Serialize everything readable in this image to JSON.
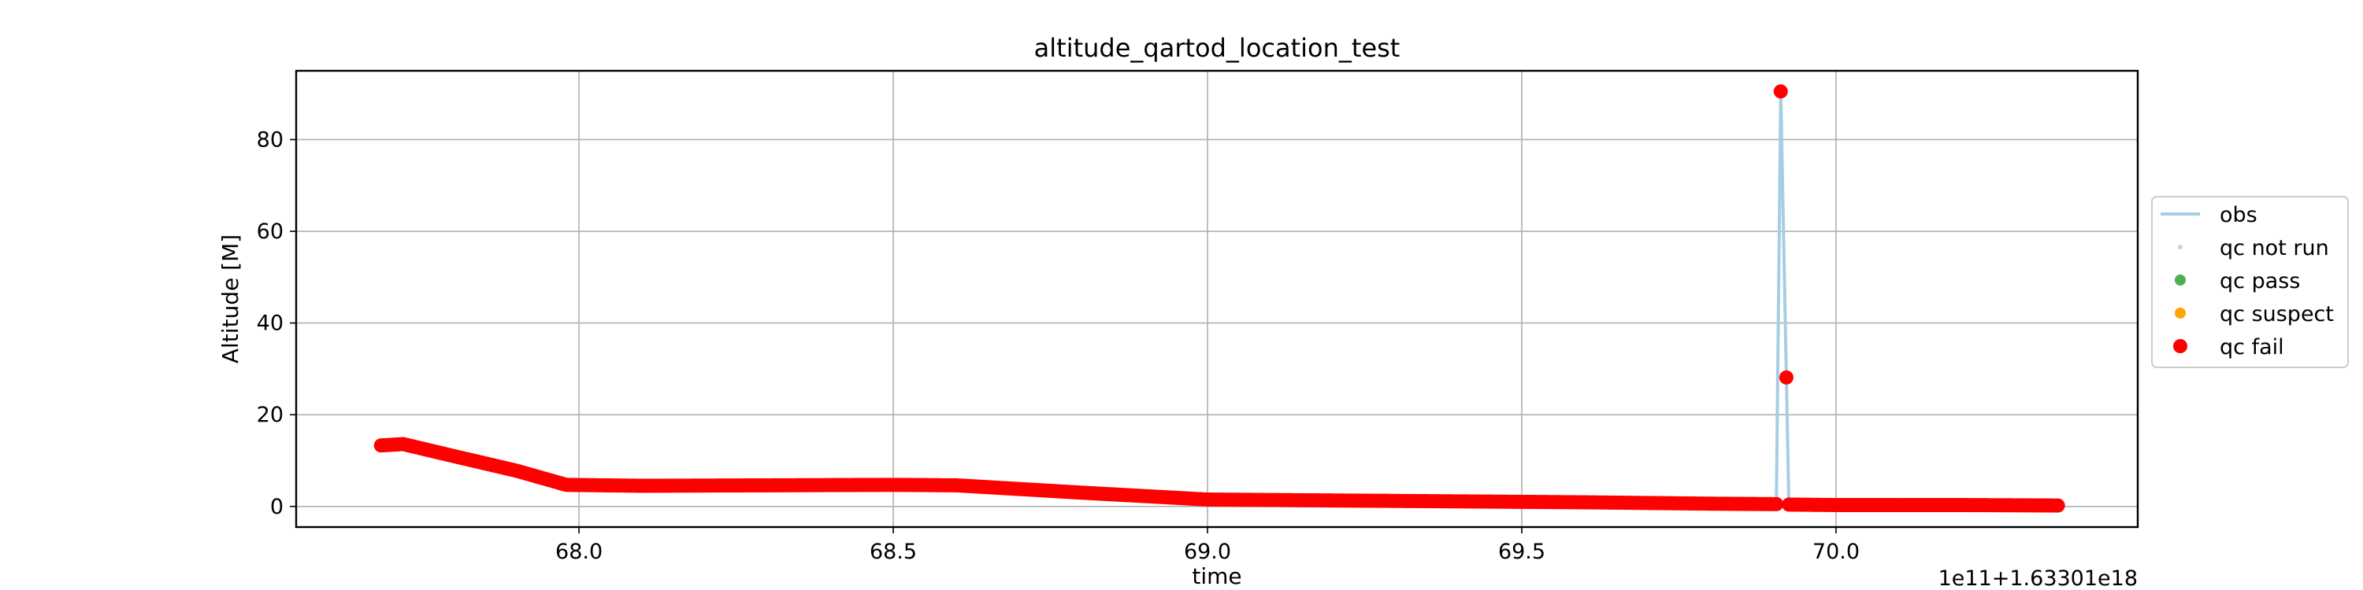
{
  "chart_data": {
    "type": "scatter",
    "title": "altitude_qartod_location_test",
    "xlabel": "time",
    "ylabel": "Altitude [M]",
    "x_offset_text": "1e11+1.63301e18",
    "xlim": [
      67.55,
      70.48
    ],
    "ylim": [
      -4.5,
      95
    ],
    "x_ticks": [
      68.0,
      68.5,
      69.0,
      69.5,
      70.0
    ],
    "x_tick_labels": [
      "68.0",
      "68.5",
      "69.0",
      "69.5",
      "70.0"
    ],
    "y_ticks": [
      0,
      20,
      40,
      60,
      80
    ],
    "y_tick_labels": [
      "0",
      "20",
      "40",
      "60",
      "80"
    ],
    "grid": true,
    "legend_position": "center-right outside",
    "colors": {
      "obs": "#a6cee3",
      "qc_not_run": "#cfcfcf",
      "qc_pass": "#4caf50",
      "qc_suspect": "#ffa500",
      "qc_fail": "#ff0000"
    },
    "legend": [
      {
        "label": "obs",
        "marker": "line",
        "color": "#a6cee3"
      },
      {
        "label": "qc not run",
        "marker": "dot-small",
        "color": "#cfcfcf"
      },
      {
        "label": "qc pass",
        "marker": "dot",
        "color": "#4caf50"
      },
      {
        "label": "qc suspect",
        "marker": "dot",
        "color": "#ffa500"
      },
      {
        "label": "qc fail",
        "marker": "dot-large",
        "color": "#ff0000"
      }
    ],
    "series": [
      {
        "name": "obs",
        "type": "line",
        "x": [
          67.685,
          67.72,
          67.8,
          67.9,
          67.98,
          68.1,
          68.3,
          68.5,
          68.6,
          68.8,
          69.0,
          69.2,
          69.4,
          69.6,
          69.8,
          69.905,
          69.912,
          69.925,
          70.0,
          70.2,
          70.355
        ],
        "y": [
          13.3,
          13.6,
          11.0,
          7.8,
          4.7,
          4.5,
          4.6,
          4.7,
          4.6,
          3.0,
          1.5,
          1.3,
          1.1,
          0.9,
          0.6,
          0.5,
          90.5,
          0.4,
          0.3,
          0.3,
          0.2
        ]
      },
      {
        "name": "qc fail",
        "type": "scatter",
        "x": [
          67.685,
          67.72,
          67.8,
          67.9,
          67.98,
          68.1,
          68.3,
          68.5,
          68.6,
          68.8,
          69.0,
          69.2,
          69.4,
          69.6,
          69.8,
          69.905,
          69.912,
          69.925,
          70.0,
          70.2,
          70.355
        ],
        "y": [
          13.3,
          13.6,
          11.0,
          7.8,
          4.7,
          4.5,
          4.6,
          4.7,
          4.6,
          3.0,
          1.5,
          1.3,
          1.1,
          0.9,
          0.6,
          0.5,
          90.5,
          0.4,
          0.3,
          0.3,
          0.2
        ]
      }
    ]
  }
}
